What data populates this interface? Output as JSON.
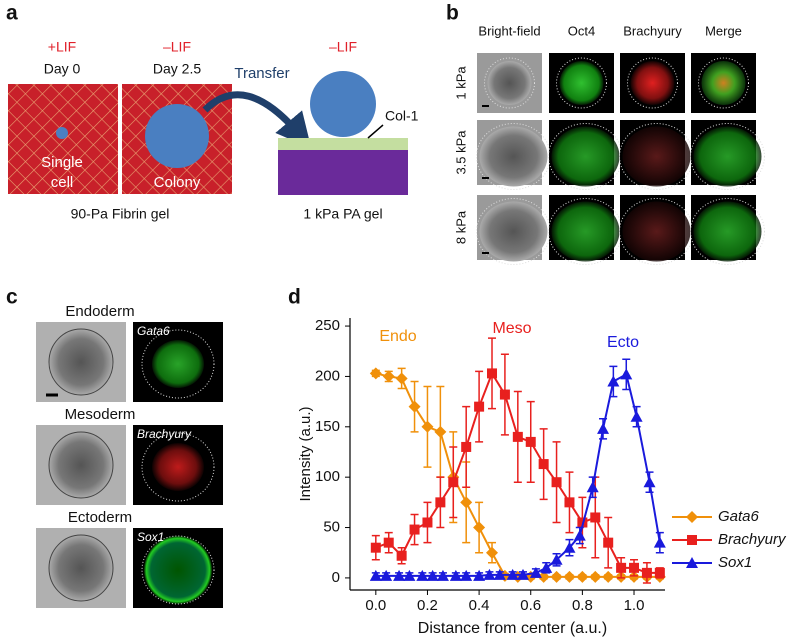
{
  "panel_a": {
    "label": "a",
    "conditions": [
      {
        "lif": "+LIF",
        "day": "Day 0",
        "cell": [
          "Single",
          "cell"
        ]
      },
      {
        "lif": "–LIF",
        "day": "Day 2.5",
        "cell": [
          "Colony"
        ]
      }
    ],
    "transfer": "Transfer",
    "right_lif": "–LIF",
    "coating": "Col-1",
    "gel_left": "90-Pa Fibrin gel",
    "gel_right": "1 kPa PA gel"
  },
  "panel_b": {
    "label": "b",
    "columns": [
      "Bright-field",
      "Oct4",
      "Brachyury",
      "Merge"
    ],
    "rows": [
      "1 kPa",
      "3.5 kPa",
      "8 kPa"
    ]
  },
  "panel_c": {
    "label": "c",
    "rows": [
      {
        "title": "Endoderm",
        "marker": "Gata6"
      },
      {
        "title": "Mesoderm",
        "marker": "Brachyury"
      },
      {
        "title": "Ectoderm",
        "marker": "Sox1"
      }
    ]
  },
  "chart_data": {
    "type": "line",
    "label": "d",
    "xlabel": "Distance from center (a.u.)",
    "ylabel": "Intensity (a.u.)",
    "xlim": [
      -0.1,
      1.12
    ],
    "ylim": [
      -12,
      258
    ],
    "xticks": [
      {
        "value": 0,
        "label": "0.0"
      },
      0.2,
      0.4,
      0.6,
      0.8,
      {
        "value": 1,
        "label": "1.0"
      }
    ],
    "yticks": [
      0,
      50,
      100,
      150,
      200,
      250
    ],
    "legend": "right",
    "annotations": [
      {
        "text": "Endo",
        "color": "#f0900a"
      },
      {
        "text": "Meso",
        "color": "#e8201e"
      },
      {
        "text": "Ecto",
        "color": "#1a1adc"
      }
    ],
    "series": [
      {
        "name": "Gata6",
        "color": "#f0900a",
        "marker": "diamond",
        "x": [
          0,
          0.05,
          0.1,
          0.15,
          0.2,
          0.25,
          0.3,
          0.35,
          0.4,
          0.45,
          0.5,
          0.55,
          0.6,
          0.65,
          0.7,
          0.75,
          0.8,
          0.85,
          0.9,
          0.95,
          1,
          1.05,
          1.1
        ],
        "values": [
          203,
          200,
          198,
          170,
          150,
          145,
          100,
          75,
          50,
          25,
          2,
          1,
          1,
          1,
          1,
          1,
          1,
          1,
          1,
          1,
          1,
          1,
          1
        ],
        "errors": [
          3,
          5,
          10,
          25,
          40,
          45,
          45,
          40,
          25,
          10,
          2,
          2,
          2,
          2,
          2,
          2,
          2,
          2,
          2,
          2,
          2,
          2,
          2
        ]
      },
      {
        "name": "Brachyury",
        "color": "#e8201e",
        "marker": "square",
        "x": [
          0,
          0.05,
          0.1,
          0.15,
          0.2,
          0.25,
          0.3,
          0.35,
          0.4,
          0.45,
          0.5,
          0.55,
          0.6,
          0.65,
          0.7,
          0.75,
          0.8,
          0.85,
          0.9,
          0.95,
          1,
          1.05,
          1.1
        ],
        "values": [
          30,
          35,
          22,
          48,
          55,
          75,
          95,
          130,
          170,
          203,
          182,
          140,
          135,
          113,
          95,
          75,
          55,
          60,
          35,
          10,
          10,
          5,
          5
        ],
        "errors": [
          12,
          10,
          8,
          15,
          20,
          25,
          35,
          40,
          35,
          35,
          40,
          45,
          40,
          35,
          40,
          30,
          25,
          40,
          25,
          10,
          8,
          10,
          5
        ]
      },
      {
        "name": "Sox1",
        "color": "#1a1adc",
        "marker": "triangle",
        "x": [
          0,
          0.04,
          0.09,
          0.13,
          0.18,
          0.22,
          0.26,
          0.31,
          0.35,
          0.4,
          0.44,
          0.48,
          0.53,
          0.57,
          0.62,
          0.66,
          0.7,
          0.75,
          0.79,
          0.84,
          0.88,
          0.92,
          0.97,
          1.01,
          1.06,
          1.1
        ],
        "values": [
          2,
          2,
          2,
          2,
          2,
          2,
          2,
          2,
          2,
          2,
          3,
          3,
          3,
          3,
          5,
          10,
          18,
          30,
          42,
          90,
          148,
          195,
          202,
          160,
          95,
          35
        ],
        "errors": [
          3,
          3,
          3,
          3,
          3,
          3,
          3,
          3,
          3,
          3,
          3,
          3,
          3,
          3,
          4,
          5,
          6,
          8,
          8,
          10,
          10,
          15,
          15,
          10,
          10,
          10
        ]
      }
    ]
  }
}
